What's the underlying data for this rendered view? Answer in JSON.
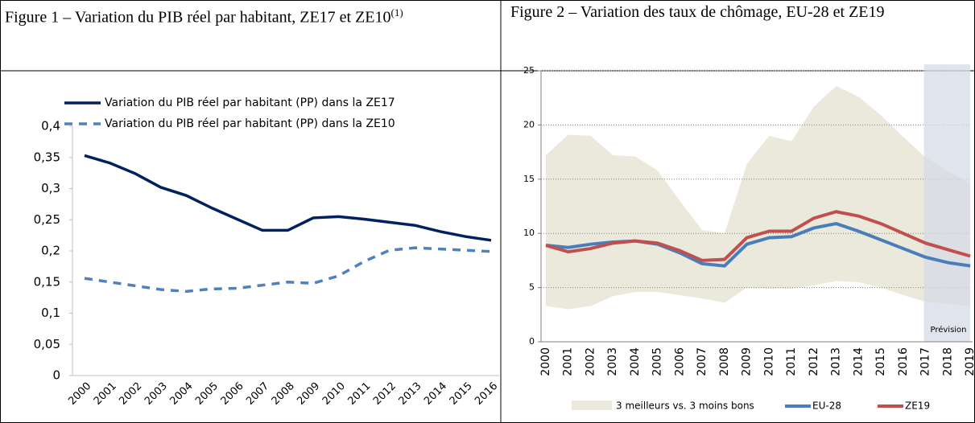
{
  "chart_data": [
    {
      "type": "line",
      "title": "Figure 1 – Variation du PIB réel par habitant, ZE17 et ZE10",
      "title_note": "(1)",
      "categories": [
        "2000",
        "2001",
        "2002",
        "2003",
        "2004",
        "2005",
        "2006",
        "2007",
        "2008",
        "2009",
        "2010",
        "2011",
        "2012",
        "2013",
        "2014",
        "2015",
        "2016"
      ],
      "series": [
        {
          "name": "Variation du PIB réel par habitant (PP) dans la ZE17",
          "color": "#002060",
          "dashed": false,
          "values": [
            0.353,
            0.341,
            0.324,
            0.302,
            0.289,
            0.269,
            0.251,
            0.233,
            0.233,
            0.253,
            0.255,
            0.251,
            0.246,
            0.241,
            0.231,
            0.223,
            0.217
          ]
        },
        {
          "name": "Variation du PIB réel par habitant (PP) dans la ZE10",
          "color": "#4f81bd",
          "dashed": true,
          "values": [
            0.156,
            0.15,
            0.144,
            0.138,
            0.135,
            0.139,
            0.14,
            0.145,
            0.15,
            0.148,
            0.16,
            0.183,
            0.201,
            0.205,
            0.203,
            0.201,
            0.199
          ]
        }
      ],
      "ylim": [
        0,
        0.4
      ],
      "yticks": [
        0,
        {
          "value": 0.05,
          "label": "0,05"
        },
        {
          "value": 0.1,
          "label": "0,1"
        },
        {
          "value": 0.15,
          "label": "0,15"
        },
        {
          "value": 0.2,
          "label": "0,2"
        },
        {
          "value": 0.25,
          "label": "0,25"
        },
        {
          "value": 0.3,
          "label": "0,3"
        },
        {
          "value": 0.35,
          "label": "0,35"
        },
        {
          "value": 0.4,
          "label": "0,4"
        }
      ],
      "grid": false,
      "legend": "top"
    },
    {
      "type": "line",
      "title": "Figure 2 – Variation des taux de chômage, EU-28 et ZE19",
      "categories": [
        "2000",
        "2001",
        "2002",
        "2003",
        "2004",
        "2005",
        "2006",
        "2007",
        "2008",
        "2009",
        "2010",
        "2011",
        "2012",
        "2013",
        "2014",
        "2015",
        "2016",
        "2017",
        "2018",
        "2019"
      ],
      "band": {
        "name": "3 meilleurs vs. 3 moins bons",
        "color": "#ebe8dc",
        "high": [
          17.2,
          19.1,
          19.0,
          17.2,
          17.1,
          15.8,
          13.0,
          10.3,
          10.0,
          16.4,
          19.0,
          18.5,
          21.7,
          23.6,
          22.6,
          20.9,
          18.9,
          17.0,
          15.7,
          14.6
        ],
        "low": [
          3.3,
          3.0,
          3.3,
          4.2,
          4.6,
          4.6,
          4.3,
          4.0,
          3.6,
          5.0,
          4.9,
          4.9,
          5.2,
          5.6,
          5.5,
          5.0,
          4.3,
          3.7,
          3.5,
          3.3
        ]
      },
      "series": [
        {
          "name": "EU-28",
          "color": "#4a7ebb",
          "values": [
            8.9,
            8.7,
            9.0,
            9.2,
            9.3,
            9.0,
            8.2,
            7.2,
            7.0,
            9.0,
            9.6,
            9.7,
            10.5,
            10.9,
            10.2,
            9.4,
            8.6,
            7.8,
            7.3,
            7.0
          ]
        },
        {
          "name": "ZE19",
          "color": "#c0504d",
          "values": [
            8.9,
            8.3,
            8.6,
            9.1,
            9.3,
            9.1,
            8.4,
            7.5,
            7.6,
            9.6,
            10.2,
            10.2,
            11.4,
            12.0,
            11.6,
            10.9,
            10.0,
            9.1,
            8.5,
            7.9
          ]
        }
      ],
      "forecast": {
        "start": "2017",
        "label": "Prévision",
        "color": "#d5dbe6"
      },
      "ylim": [
        0,
        25
      ],
      "yticks": [
        0,
        5,
        10,
        15,
        20,
        25
      ],
      "grid": true,
      "legend": "bottom"
    }
  ]
}
